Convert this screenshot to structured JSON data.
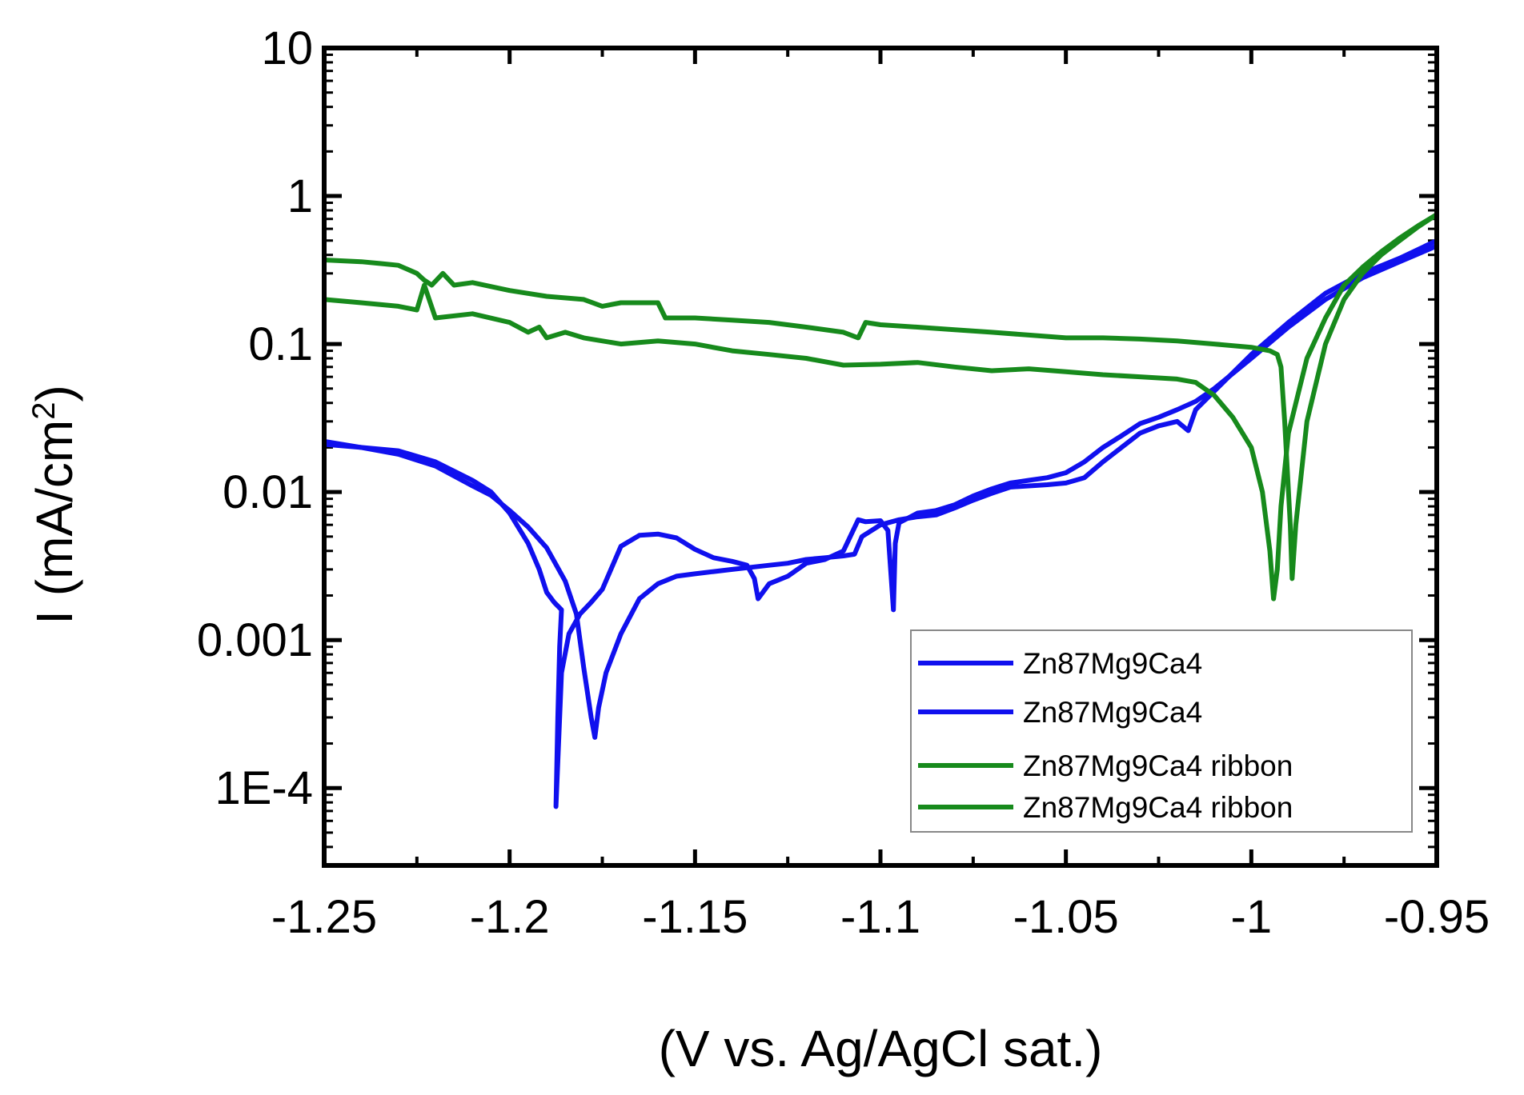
{
  "chart_data": {
    "type": "line",
    "title": "",
    "xlabel": "(V vs. Ag/AgCl sat.)",
    "ylabel_main": "I (mA/cm",
    "ylabel_sup": "2",
    "ylabel_close": ")",
    "xlim": [
      -1.25,
      -0.95
    ],
    "ylim_log": [
      3e-05,
      10
    ],
    "y_scale": "log",
    "x_ticks": [
      -1.25,
      -1.2,
      -1.15,
      -1.1,
      -1.05,
      -1.0,
      -0.95
    ],
    "x_tick_labels": [
      "-1.25",
      "-1.2",
      "-1.15",
      "-1.1",
      "-1.05",
      "-1",
      "-0.95"
    ],
    "y_ticks": [
      0.0001,
      0.001,
      0.01,
      0.1,
      1,
      10
    ],
    "y_tick_labels": [
      "1E-4",
      "0.001",
      "0.01",
      "0.1",
      "1",
      "10"
    ],
    "legend_position": "bottom-right",
    "series": [
      {
        "name": "Zn87Mg9Ca4",
        "color": "#1010ee",
        "x": [
          -1.25,
          -1.24,
          -1.23,
          -1.22,
          -1.21,
          -1.205,
          -1.2,
          -1.195,
          -1.192,
          -1.19,
          -1.188,
          -1.186,
          -1.1865,
          -1.187,
          -1.1875,
          -1.186,
          -1.184,
          -1.181,
          -1.178,
          -1.175,
          -1.17,
          -1.165,
          -1.16,
          -1.155,
          -1.15,
          -1.145,
          -1.14,
          -1.136,
          -1.134,
          -1.133,
          -1.13,
          -1.125,
          -1.12,
          -1.115,
          -1.11,
          -1.106,
          -1.104,
          -1.1,
          -1.098,
          -1.0965,
          -1.096,
          -1.095,
          -1.09,
          -1.085,
          -1.08,
          -1.075,
          -1.07,
          -1.065,
          -1.06,
          -1.055,
          -1.05,
          -1.045,
          -1.04,
          -1.035,
          -1.03,
          -1.025,
          -1.02,
          -1.015,
          -1.01,
          -1.0,
          -0.99,
          -0.98,
          -0.97,
          -0.96,
          -0.95
        ],
        "y": [
          0.022,
          0.02,
          0.019,
          0.016,
          0.012,
          0.01,
          0.0072,
          0.0045,
          0.003,
          0.0021,
          0.0018,
          0.0016,
          0.0009,
          0.0003,
          7.5e-05,
          0.0006,
          0.0011,
          0.0015,
          0.0018,
          0.0022,
          0.0043,
          0.0051,
          0.0052,
          0.0049,
          0.0041,
          0.0036,
          0.0034,
          0.0032,
          0.0026,
          0.0019,
          0.0024,
          0.0027,
          0.0033,
          0.0035,
          0.004,
          0.0065,
          0.0063,
          0.0064,
          0.0055,
          0.0016,
          0.0045,
          0.0062,
          0.0072,
          0.0075,
          0.0082,
          0.0094,
          0.0105,
          0.0115,
          0.012,
          0.0125,
          0.0135,
          0.016,
          0.02,
          0.024,
          0.029,
          0.032,
          0.036,
          0.041,
          0.05,
          0.08,
          0.13,
          0.2,
          0.28,
          0.36,
          0.46
        ]
      },
      {
        "name": "Zn87Mg9Ca4",
        "color": "#1010ee",
        "x": [
          -1.25,
          -1.24,
          -1.23,
          -1.22,
          -1.21,
          -1.205,
          -1.2,
          -1.195,
          -1.19,
          -1.185,
          -1.182,
          -1.18,
          -1.178,
          -1.177,
          -1.176,
          -1.174,
          -1.17,
          -1.165,
          -1.16,
          -1.155,
          -1.15,
          -1.145,
          -1.14,
          -1.135,
          -1.13,
          -1.125,
          -1.12,
          -1.115,
          -1.11,
          -1.107,
          -1.105,
          -1.1,
          -1.095,
          -1.09,
          -1.085,
          -1.08,
          -1.075,
          -1.07,
          -1.065,
          -1.06,
          -1.055,
          -1.05,
          -1.045,
          -1.04,
          -1.035,
          -1.03,
          -1.025,
          -1.02,
          -1.017,
          -1.015,
          -1.01,
          -1.0,
          -0.99,
          -0.98,
          -0.97,
          -0.96,
          -0.95
        ],
        "y": [
          0.021,
          0.02,
          0.018,
          0.015,
          0.011,
          0.0095,
          0.0075,
          0.0058,
          0.0042,
          0.0025,
          0.0015,
          0.00065,
          0.0003,
          0.00022,
          0.00035,
          0.0006,
          0.0011,
          0.0019,
          0.0024,
          0.0027,
          0.0028,
          0.0029,
          0.003,
          0.0031,
          0.0032,
          0.0033,
          0.0035,
          0.0036,
          0.0037,
          0.0038,
          0.005,
          0.006,
          0.0065,
          0.0068,
          0.007,
          0.0078,
          0.0088,
          0.0098,
          0.0108,
          0.011,
          0.0112,
          0.0115,
          0.0125,
          0.016,
          0.02,
          0.025,
          0.028,
          0.03,
          0.026,
          0.036,
          0.048,
          0.085,
          0.14,
          0.22,
          0.3,
          0.38,
          0.5
        ]
      },
      {
        "name": "Zn87Mg9Ca4 ribbon",
        "color": "#178a1c",
        "x": [
          -1.25,
          -1.24,
          -1.235,
          -1.23,
          -1.225,
          -1.223,
          -1.221,
          -1.218,
          -1.215,
          -1.21,
          -1.2,
          -1.19,
          -1.18,
          -1.175,
          -1.17,
          -1.165,
          -1.16,
          -1.158,
          -1.15,
          -1.14,
          -1.13,
          -1.12,
          -1.11,
          -1.106,
          -1.104,
          -1.1,
          -1.09,
          -1.08,
          -1.07,
          -1.06,
          -1.05,
          -1.04,
          -1.03,
          -1.02,
          -1.01,
          -1.0,
          -0.995,
          -0.993,
          -0.992,
          -0.991,
          -0.9895,
          -0.989,
          -0.988,
          -0.985,
          -0.98,
          -0.975,
          -0.97,
          -0.965,
          -0.96,
          -0.955,
          -0.95
        ],
        "y": [
          0.37,
          0.36,
          0.35,
          0.34,
          0.3,
          0.27,
          0.25,
          0.3,
          0.25,
          0.26,
          0.23,
          0.21,
          0.2,
          0.18,
          0.19,
          0.19,
          0.19,
          0.15,
          0.15,
          0.145,
          0.14,
          0.13,
          0.12,
          0.11,
          0.14,
          0.135,
          0.13,
          0.125,
          0.12,
          0.115,
          0.11,
          0.11,
          0.108,
          0.105,
          0.1,
          0.095,
          0.09,
          0.085,
          0.07,
          0.03,
          0.006,
          0.0026,
          0.006,
          0.03,
          0.1,
          0.2,
          0.3,
          0.4,
          0.5,
          0.62,
          0.75
        ]
      },
      {
        "name": "Zn87Mg9Ca4 ribbon",
        "color": "#178a1c",
        "x": [
          -1.25,
          -1.24,
          -1.23,
          -1.225,
          -1.223,
          -1.22,
          -1.21,
          -1.2,
          -1.195,
          -1.192,
          -1.19,
          -1.185,
          -1.18,
          -1.17,
          -1.16,
          -1.15,
          -1.14,
          -1.13,
          -1.12,
          -1.11,
          -1.1,
          -1.09,
          -1.08,
          -1.07,
          -1.06,
          -1.05,
          -1.04,
          -1.03,
          -1.02,
          -1.015,
          -1.01,
          -1.005,
          -1.0,
          -0.997,
          -0.995,
          -0.994,
          -0.993,
          -0.992,
          -0.99,
          -0.985,
          -0.98,
          -0.975,
          -0.97,
          -0.965,
          -0.96,
          -0.955,
          -0.95
        ],
        "y": [
          0.2,
          0.19,
          0.18,
          0.17,
          0.25,
          0.15,
          0.16,
          0.14,
          0.12,
          0.13,
          0.11,
          0.12,
          0.11,
          0.1,
          0.105,
          0.1,
          0.09,
          0.085,
          0.08,
          0.072,
          0.073,
          0.075,
          0.07,
          0.066,
          0.068,
          0.065,
          0.062,
          0.06,
          0.058,
          0.055,
          0.045,
          0.032,
          0.02,
          0.01,
          0.004,
          0.0019,
          0.003,
          0.008,
          0.025,
          0.08,
          0.15,
          0.25,
          0.33,
          0.42,
          0.52,
          0.63,
          0.75
        ]
      }
    ]
  }
}
